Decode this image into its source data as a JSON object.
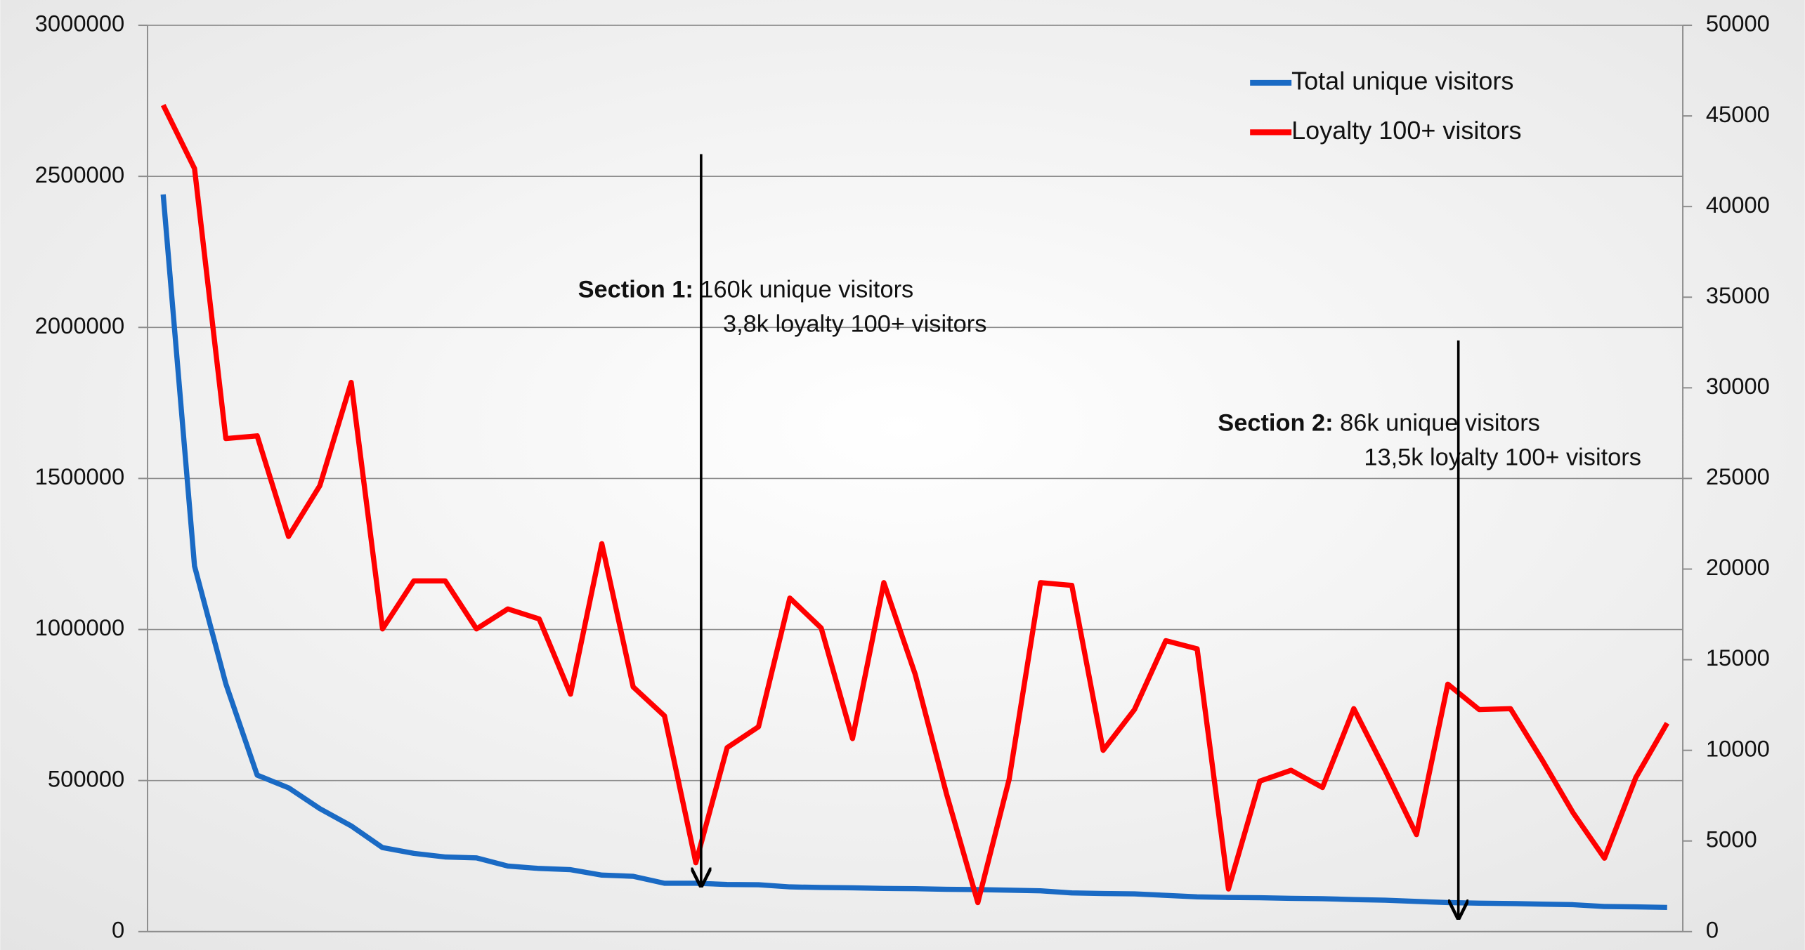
{
  "chart_data": {
    "type": "line",
    "categories": [
      null,
      null,
      null,
      null,
      null,
      null,
      null,
      null,
      null,
      null,
      null,
      null,
      null,
      null,
      null,
      null,
      null,
      null,
      null,
      null,
      null,
      null,
      null,
      null,
      null,
      null,
      null,
      null,
      null,
      null,
      null,
      null,
      null,
      null,
      null,
      null,
      null,
      null,
      null,
      null,
      null,
      null,
      null,
      null,
      null,
      null,
      null,
      null,
      null
    ],
    "series": [
      {
        "name": "Total unique visitors",
        "color": "#1a6ac4",
        "values": [
          2440000,
          1210000,
          820000,
          518000,
          476000,
          407000,
          350000,
          278000,
          259000,
          247000,
          244000,
          217000,
          209000,
          205000,
          187000,
          183000,
          160000,
          160000,
          156000,
          155000,
          148000,
          146000,
          145000,
          143000,
          142000,
          140000,
          139000,
          137000,
          135000,
          128000,
          126000,
          125000,
          120000,
          115000,
          113000,
          112000,
          110000,
          109000,
          106000,
          104000,
          100000,
          96000,
          94000,
          93000,
          91000,
          89000,
          83000,
          82000,
          80000
        ]
      },
      {
        "name": "Loyalty 100+ visitors",
        "color": "#ff0000",
        "axis": "y2",
        "values": [
          45600,
          42100,
          27200,
          27350,
          21800,
          24600,
          30300,
          16700,
          19350,
          19350,
          16700,
          17800,
          17250,
          13100,
          21400,
          13500,
          11900,
          3800,
          10150,
          11300,
          18400,
          16750,
          10650,
          19250,
          14200,
          7600,
          1600,
          8400,
          19250,
          19100,
          10000,
          12250,
          16050,
          15600,
          2350,
          8300,
          8900,
          7950,
          12300,
          8900,
          5350,
          13650,
          12250,
          12300,
          9500,
          6550,
          4050,
          8500,
          11500
        ]
      }
    ],
    "ylim": [
      0,
      3000000
    ],
    "yticks": [
      0,
      500000,
      1000000,
      1500000,
      2000000,
      2500000,
      3000000
    ],
    "y2lim": [
      0,
      50000
    ],
    "y2ticks": [
      0,
      5000,
      10000,
      15000,
      20000,
      25000,
      30000,
      35000,
      40000,
      45000,
      50000
    ],
    "grid": true,
    "legend": "top-right",
    "annotations": [
      {
        "bold": "Section 1:",
        "text": " 160k unique visitors",
        "text2": "3,8k loyalty 100+ visitors"
      },
      {
        "bold": "Section 2:",
        "text": " 86k unique visitors",
        "text2": "13,5k loyalty 100+ visitors"
      }
    ]
  }
}
